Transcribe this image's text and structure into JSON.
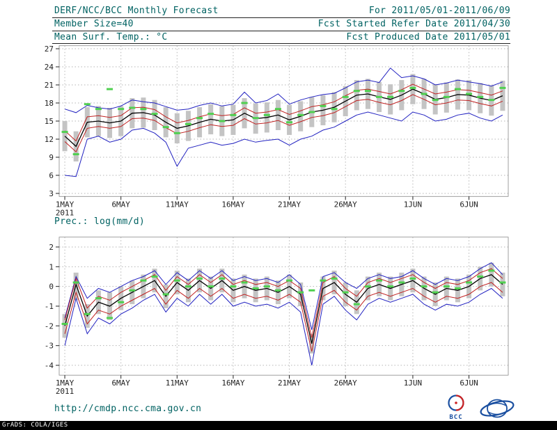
{
  "header": {
    "title": "DERF/NCC/BCC Monthly Forecast",
    "member_size": "Member Size=40",
    "for_range": "For 2011/05/01-2011/06/09",
    "fcst_started": "Fcst Started Refer Date 2011/04/30",
    "fcst_produced": "Fcst Produced Date 2011/05/01"
  },
  "footer": {
    "url": "http://cmdp.ncc.cma.gov.cn",
    "grads_credit": "GrADS: COLA/IGES"
  },
  "logos": {
    "bcc_label": "BCC"
  },
  "colors": {
    "envelope_blue": "#2020c0",
    "quartile_red": "#c02020",
    "mean_black": "#000000",
    "marker_green": "#50d050",
    "spread_gray": "#c4c4c4",
    "header_teal": "#006262"
  },
  "chart_data": [
    {
      "type": "line",
      "name": "surface-temperature-chart",
      "title": "Mean Surf. Temp.: °C",
      "n_points": 40,
      "ylim": [
        2.5,
        27.5
      ],
      "yticks": [
        3,
        6,
        9,
        12,
        15,
        18,
        21,
        24,
        27
      ],
      "xticks": [
        {
          "day": 1,
          "label": "1MAY",
          "sublabel": "2011"
        },
        {
          "day": 6,
          "label": "6MAY"
        },
        {
          "day": 11,
          "label": "11MAY"
        },
        {
          "day": 16,
          "label": "16MAY"
        },
        {
          "day": 21,
          "label": "21MAY"
        },
        {
          "day": 26,
          "label": "26MAY"
        },
        {
          "day": 32,
          "label": "1JUN"
        },
        {
          "day": 37,
          "label": "6JUN"
        }
      ],
      "series": [
        {
          "name": "member-spread-bar",
          "style": "range-bar",
          "color": "#c4c4c4",
          "lo": [
            10.0,
            8.3,
            12.3,
            12.5,
            12.2,
            12.5,
            13.8,
            13.9,
            13.5,
            12.3,
            11.3,
            11.7,
            12.3,
            12.8,
            12.5,
            12.7,
            13.8,
            12.9,
            13.1,
            13.5,
            12.7,
            13.3,
            14.0,
            14.3,
            14.8,
            15.8,
            16.8,
            17.0,
            16.5,
            16.1,
            16.8,
            17.8,
            17.0,
            16.1,
            16.4,
            16.9,
            16.8,
            16.3,
            15.9,
            16.7
          ],
          "hi": [
            15.0,
            13.3,
            17.3,
            17.5,
            17.2,
            17.5,
            18.8,
            18.9,
            18.5,
            17.3,
            16.3,
            16.7,
            17.3,
            17.8,
            17.5,
            17.7,
            18.8,
            17.9,
            18.1,
            18.5,
            17.7,
            18.3,
            19.0,
            19.3,
            19.8,
            20.8,
            21.8,
            22.0,
            21.5,
            21.1,
            21.8,
            22.8,
            22.0,
            21.1,
            21.4,
            21.9,
            21.8,
            21.3,
            20.9,
            21.7
          ]
        },
        {
          "name": "upper-envelope",
          "style": "line",
          "color": "#2020c0",
          "values": [
            17.0,
            16.4,
            17.6,
            17.2,
            17.0,
            17.5,
            18.5,
            18.2,
            18.0,
            17.4,
            16.8,
            17.0,
            17.6,
            18.0,
            17.5,
            17.8,
            19.8,
            18.0,
            18.4,
            19.5,
            17.8,
            18.5,
            19.0,
            19.4,
            19.6,
            20.5,
            21.5,
            21.8,
            21.4,
            23.8,
            22.2,
            22.5,
            22.0,
            21.0,
            21.3,
            21.8,
            21.5,
            21.2,
            20.8,
            21.5
          ]
        },
        {
          "name": "lower-envelope",
          "style": "line",
          "color": "#2020c0",
          "values": [
            6.0,
            5.8,
            12.0,
            12.5,
            11.5,
            12.0,
            13.5,
            13.8,
            13.0,
            11.5,
            7.5,
            10.5,
            11.0,
            11.5,
            11.0,
            11.3,
            12.0,
            11.5,
            11.8,
            12.0,
            11.0,
            12.0,
            12.5,
            13.5,
            14.0,
            15.0,
            16.0,
            16.5,
            16.0,
            15.5,
            15.0,
            16.5,
            16.0,
            15.0,
            15.3,
            16.0,
            16.3,
            15.5,
            15.0,
            16.0
          ]
        },
        {
          "name": "upper-quartile",
          "style": "line",
          "color": "#c02020",
          "values": [
            13.4,
            11.7,
            15.7,
            15.9,
            15.6,
            15.9,
            17.2,
            17.3,
            16.9,
            15.7,
            14.7,
            15.1,
            15.7,
            16.2,
            15.9,
            16.1,
            17.2,
            16.3,
            16.5,
            16.9,
            16.1,
            16.7,
            17.4,
            17.7,
            18.2,
            19.2,
            20.1,
            20.3,
            19.9,
            19.5,
            20.2,
            21.1,
            20.3,
            19.5,
            19.8,
            20.2,
            20.1,
            19.7,
            19.3,
            20.0
          ]
        },
        {
          "name": "lower-quartile",
          "style": "line",
          "color": "#c02020",
          "values": [
            11.6,
            9.9,
            13.8,
            14.1,
            13.8,
            14.1,
            15.4,
            15.5,
            15.1,
            13.9,
            12.9,
            13.3,
            13.9,
            14.4,
            14.1,
            14.3,
            15.4,
            14.5,
            14.7,
            15.1,
            14.3,
            14.9,
            15.6,
            15.9,
            16.4,
            17.4,
            18.4,
            18.6,
            18.1,
            17.7,
            18.4,
            19.4,
            18.6,
            17.7,
            18.0,
            18.5,
            18.4,
            17.9,
            17.5,
            18.3
          ]
        },
        {
          "name": "ensemble-mean",
          "style": "line",
          "color": "#000000",
          "values": [
            12.5,
            10.8,
            14.8,
            15.0,
            14.7,
            15.0,
            16.3,
            16.4,
            16.0,
            14.8,
            13.8,
            14.2,
            14.8,
            15.3,
            15.0,
            15.2,
            16.3,
            15.4,
            15.6,
            16.0,
            15.2,
            15.8,
            16.5,
            16.8,
            17.3,
            18.3,
            19.3,
            19.5,
            19.0,
            18.6,
            19.3,
            20.3,
            19.5,
            18.6,
            18.9,
            19.4,
            19.3,
            18.8,
            18.4,
            19.2
          ]
        },
        {
          "name": "daily-dash-marker",
          "style": "dash-marker",
          "color": "#50d050",
          "values": [
            13.2,
            9.5,
            17.8,
            17.0,
            20.3,
            17.0,
            17.2,
            17.0,
            16.2,
            14.0,
            13.0,
            14.5,
            15.5,
            16.2,
            15.0,
            16.0,
            18.0,
            15.5,
            16.0,
            17.0,
            14.8,
            16.0,
            16.5,
            17.5,
            17.0,
            19.0,
            20.0,
            20.0,
            19.0,
            19.0,
            20.0,
            20.5,
            19.5,
            18.5,
            19.0,
            20.3,
            19.5,
            19.0,
            18.5,
            20.5
          ]
        }
      ]
    },
    {
      "type": "line",
      "name": "precipitation-chart",
      "title": "Prec.: log(mm/d)",
      "n_points": 40,
      "ylim": [
        -4.5,
        2.5
      ],
      "yticks": [
        -4,
        -3,
        -2,
        -1,
        0,
        1,
        2
      ],
      "xticks": [
        {
          "day": 1,
          "label": "1MAY",
          "sublabel": "2011"
        },
        {
          "day": 6,
          "label": "6MAY"
        },
        {
          "day": 11,
          "label": "11MAY"
        },
        {
          "day": 16,
          "label": "16MAY"
        },
        {
          "day": 21,
          "label": "21MAY"
        },
        {
          "day": 26,
          "label": "26MAY"
        },
        {
          "day": 32,
          "label": "1JUN"
        },
        {
          "day": 37,
          "label": "6JUN"
        }
      ],
      "series": [
        {
          "name": "member-spread-bar",
          "style": "range-bar",
          "color": "#c4c4c4",
          "lo": [
            -2.6,
            -0.7,
            -2.1,
            -1.4,
            -1.7,
            -1.2,
            -0.9,
            -0.6,
            -0.3,
            -1.1,
            -0.4,
            -0.8,
            -0.3,
            -0.7,
            -0.3,
            -0.8,
            -0.6,
            -0.8,
            -0.7,
            -0.9,
            -0.6,
            -1.0,
            -3.4,
            -0.7,
            -0.4,
            -1.0,
            -1.4,
            -0.7,
            -0.5,
            -0.7,
            -0.5,
            -0.3,
            -0.7,
            -1.0,
            -0.7,
            -0.8,
            -0.6,
            -0.2,
            0.0,
            -0.5
          ],
          "hi": [
            -1.4,
            0.7,
            -0.9,
            -0.2,
            -0.3,
            0.0,
            0.3,
            0.6,
            0.9,
            0.1,
            0.8,
            0.4,
            0.9,
            0.5,
            0.9,
            0.4,
            0.6,
            0.4,
            0.5,
            0.3,
            0.6,
            0.2,
            -2.4,
            0.5,
            0.8,
            0.2,
            -0.2,
            0.5,
            0.7,
            0.5,
            0.7,
            0.9,
            0.5,
            0.2,
            0.5,
            0.4,
            0.6,
            1.0,
            1.2,
            0.7
          ]
        },
        {
          "name": "upper-envelope",
          "style": "line",
          "color": "#2020c0",
          "values": [
            -1.6,
            0.5,
            -0.6,
            -0.1,
            -0.3,
            0.0,
            0.3,
            0.5,
            0.8,
            0.1,
            0.7,
            0.3,
            0.8,
            0.4,
            0.8,
            0.3,
            0.5,
            0.3,
            0.4,
            0.2,
            0.6,
            0.1,
            -2.2,
            0.5,
            0.7,
            0.2,
            -0.1,
            0.4,
            0.6,
            0.4,
            0.5,
            0.8,
            0.4,
            0.1,
            0.4,
            0.3,
            0.5,
            0.9,
            1.2,
            0.6
          ]
        },
        {
          "name": "lower-envelope",
          "style": "line",
          "color": "#2020c0",
          "values": [
            -3.0,
            -0.6,
            -2.4,
            -1.6,
            -1.9,
            -1.4,
            -1.1,
            -0.7,
            -0.4,
            -1.3,
            -0.6,
            -1.0,
            -0.4,
            -0.9,
            -0.4,
            -1.0,
            -0.8,
            -1.0,
            -0.9,
            -1.1,
            -0.8,
            -1.3,
            -4.0,
            -0.9,
            -0.5,
            -1.2,
            -1.7,
            -0.9,
            -0.6,
            -0.8,
            -0.6,
            -0.4,
            -0.9,
            -1.2,
            -0.9,
            -1.0,
            -0.8,
            -0.4,
            -0.1,
            -0.6
          ]
        },
        {
          "name": "upper-quartile",
          "style": "line",
          "color": "#c02020",
          "values": [
            -1.7,
            0.4,
            -1.1,
            -0.5,
            -0.7,
            -0.3,
            0.0,
            0.3,
            0.6,
            -0.2,
            0.5,
            0.1,
            0.6,
            0.2,
            0.6,
            0.1,
            0.3,
            0.1,
            0.2,
            0.0,
            0.3,
            -0.1,
            -2.6,
            0.2,
            0.5,
            -0.1,
            -0.5,
            0.2,
            0.4,
            0.2,
            0.4,
            0.6,
            0.2,
            -0.1,
            0.2,
            0.1,
            0.3,
            0.7,
            0.9,
            0.4
          ]
        },
        {
          "name": "lower-quartile",
          "style": "line",
          "color": "#c02020",
          "values": [
            -2.4,
            -0.3,
            -1.9,
            -1.2,
            -1.4,
            -1.0,
            -0.7,
            -0.4,
            -0.1,
            -0.9,
            -0.2,
            -0.6,
            -0.1,
            -0.5,
            -0.1,
            -0.6,
            -0.4,
            -0.6,
            -0.5,
            -0.7,
            -0.4,
            -0.8,
            -3.3,
            -0.5,
            -0.2,
            -0.8,
            -1.2,
            -0.5,
            -0.3,
            -0.5,
            -0.3,
            -0.1,
            -0.5,
            -0.8,
            -0.5,
            -0.6,
            -0.4,
            0.0,
            0.2,
            -0.3
          ]
        },
        {
          "name": "ensemble-mean",
          "style": "line",
          "color": "#000000",
          "values": [
            -2.0,
            0.1,
            -1.5,
            -0.8,
            -1.0,
            -0.6,
            -0.3,
            0.0,
            0.3,
            -0.5,
            0.2,
            -0.2,
            0.3,
            -0.1,
            0.3,
            -0.2,
            0.0,
            -0.2,
            -0.1,
            -0.3,
            0.0,
            -0.4,
            -2.9,
            -0.1,
            0.2,
            -0.4,
            -0.8,
            -0.1,
            0.1,
            -0.1,
            0.1,
            0.3,
            -0.1,
            -0.4,
            -0.1,
            -0.2,
            0.0,
            0.4,
            0.6,
            0.1
          ]
        },
        {
          "name": "daily-dash-marker",
          "style": "dash-marker",
          "color": "#50d050",
          "values": [
            -1.9,
            0.2,
            -1.4,
            -0.6,
            -1.6,
            -0.8,
            -0.2,
            0.3,
            0.5,
            -0.4,
            0.3,
            0.0,
            0.4,
            0.0,
            0.4,
            0.0,
            0.2,
            -0.1,
            0.0,
            -0.2,
            0.3,
            -0.3,
            -0.2,
            0.3,
            0.4,
            -0.3,
            -0.9,
            0.0,
            0.3,
            0.0,
            0.2,
            0.4,
            0.0,
            -0.3,
            0.0,
            -0.1,
            0.2,
            0.5,
            0.8,
            0.2
          ]
        }
      ]
    }
  ]
}
